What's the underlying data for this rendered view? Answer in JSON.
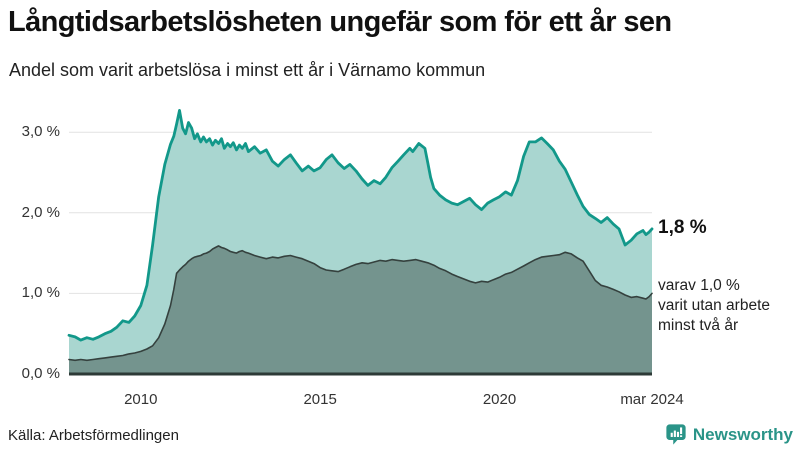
{
  "header": {
    "title": "Långtidsarbetslösheten ungefär som för ett år sen",
    "subtitle": "Andel som varit arbetslösa i minst ett år i Värnamo kommun"
  },
  "annotations": {
    "latest_total": "1,8 %",
    "latest_secondary": "varav 1,0 %\nvarit utan arbete\nminst två år"
  },
  "footer": {
    "source": "Källa: Arbetsförmedlingen",
    "brand": "Newsworthy"
  },
  "colors": {
    "accent_teal": "#12988a",
    "area_light": "#a9d6d0",
    "area_dark": "#74948e",
    "line_dark": "#35413e",
    "grid": "#e2e2e2",
    "axis": "#2d3a37",
    "brand_teal": "#2a9488",
    "text": "#222222"
  },
  "chart_data": {
    "type": "area",
    "title": "Långtidsarbetslösheten ungefär som för ett år sen",
    "subtitle": "Andel som varit arbetslösa i minst ett år i Värnamo kommun",
    "unit": "%",
    "grid": "horizontal",
    "legend": "none",
    "x_axis": {
      "range": [
        2008.0,
        2024.25
      ],
      "ticks": [
        {
          "value": 2010,
          "label": "2010"
        },
        {
          "value": 2015,
          "label": "2015"
        },
        {
          "value": 2020,
          "label": "2020"
        },
        {
          "value": 2024.25,
          "label": "mar 2024"
        }
      ]
    },
    "y_axis": {
      "range": [
        0,
        3.35
      ],
      "ticks": [
        {
          "value": 0,
          "label": "0,0 %"
        },
        {
          "value": 1,
          "label": "1,0 %"
        },
        {
          "value": 2,
          "label": "2,0 %"
        },
        {
          "value": 3,
          "label": "3,0 %"
        }
      ]
    },
    "series": [
      {
        "name": "Andel arbetslösa minst ett år",
        "color": "#12988a",
        "fill": "#a9d6d0",
        "line_width": 2.8,
        "latest_value": 1.8,
        "points": [
          [
            2008.0,
            0.48
          ],
          [
            2008.17,
            0.46
          ],
          [
            2008.33,
            0.42
          ],
          [
            2008.5,
            0.45
          ],
          [
            2008.67,
            0.43
          ],
          [
            2008.83,
            0.46
          ],
          [
            2009.0,
            0.5
          ],
          [
            2009.17,
            0.53
          ],
          [
            2009.33,
            0.58
          ],
          [
            2009.5,
            0.66
          ],
          [
            2009.67,
            0.64
          ],
          [
            2009.83,
            0.72
          ],
          [
            2010.0,
            0.85
          ],
          [
            2010.17,
            1.1
          ],
          [
            2010.33,
            1.6
          ],
          [
            2010.5,
            2.2
          ],
          [
            2010.67,
            2.6
          ],
          [
            2010.83,
            2.85
          ],
          [
            2010.92,
            2.95
          ],
          [
            2011.0,
            3.1
          ],
          [
            2011.08,
            3.27
          ],
          [
            2011.17,
            3.05
          ],
          [
            2011.25,
            2.98
          ],
          [
            2011.33,
            3.12
          ],
          [
            2011.42,
            3.05
          ],
          [
            2011.5,
            2.92
          ],
          [
            2011.58,
            2.98
          ],
          [
            2011.67,
            2.88
          ],
          [
            2011.75,
            2.94
          ],
          [
            2011.83,
            2.88
          ],
          [
            2011.92,
            2.92
          ],
          [
            2012.0,
            2.84
          ],
          [
            2012.08,
            2.9
          ],
          [
            2012.17,
            2.86
          ],
          [
            2012.25,
            2.92
          ],
          [
            2012.33,
            2.8
          ],
          [
            2012.42,
            2.86
          ],
          [
            2012.5,
            2.82
          ],
          [
            2012.58,
            2.87
          ],
          [
            2012.67,
            2.78
          ],
          [
            2012.75,
            2.84
          ],
          [
            2012.83,
            2.8
          ],
          [
            2012.92,
            2.86
          ],
          [
            2013.0,
            2.76
          ],
          [
            2013.17,
            2.82
          ],
          [
            2013.33,
            2.74
          ],
          [
            2013.5,
            2.78
          ],
          [
            2013.67,
            2.64
          ],
          [
            2013.83,
            2.58
          ],
          [
            2014.0,
            2.66
          ],
          [
            2014.17,
            2.72
          ],
          [
            2014.33,
            2.62
          ],
          [
            2014.5,
            2.52
          ],
          [
            2014.67,
            2.58
          ],
          [
            2014.83,
            2.52
          ],
          [
            2015.0,
            2.56
          ],
          [
            2015.17,
            2.66
          ],
          [
            2015.33,
            2.72
          ],
          [
            2015.5,
            2.62
          ],
          [
            2015.67,
            2.55
          ],
          [
            2015.83,
            2.6
          ],
          [
            2016.0,
            2.52
          ],
          [
            2016.17,
            2.42
          ],
          [
            2016.33,
            2.34
          ],
          [
            2016.5,
            2.4
          ],
          [
            2016.67,
            2.36
          ],
          [
            2016.83,
            2.44
          ],
          [
            2017.0,
            2.56
          ],
          [
            2017.17,
            2.64
          ],
          [
            2017.33,
            2.72
          ],
          [
            2017.5,
            2.8
          ],
          [
            2017.58,
            2.76
          ],
          [
            2017.75,
            2.86
          ],
          [
            2017.92,
            2.8
          ],
          [
            2018.0,
            2.62
          ],
          [
            2018.08,
            2.44
          ],
          [
            2018.17,
            2.3
          ],
          [
            2018.33,
            2.22
          ],
          [
            2018.5,
            2.16
          ],
          [
            2018.67,
            2.12
          ],
          [
            2018.83,
            2.1
          ],
          [
            2019.0,
            2.14
          ],
          [
            2019.17,
            2.18
          ],
          [
            2019.33,
            2.1
          ],
          [
            2019.5,
            2.04
          ],
          [
            2019.67,
            2.12
          ],
          [
            2019.83,
            2.16
          ],
          [
            2020.0,
            2.2
          ],
          [
            2020.17,
            2.26
          ],
          [
            2020.33,
            2.22
          ],
          [
            2020.5,
            2.4
          ],
          [
            2020.67,
            2.7
          ],
          [
            2020.83,
            2.88
          ],
          [
            2021.0,
            2.88
          ],
          [
            2021.17,
            2.93
          ],
          [
            2021.33,
            2.86
          ],
          [
            2021.5,
            2.78
          ],
          [
            2021.67,
            2.64
          ],
          [
            2021.83,
            2.54
          ],
          [
            2022.0,
            2.38
          ],
          [
            2022.17,
            2.22
          ],
          [
            2022.33,
            2.08
          ],
          [
            2022.5,
            1.98
          ],
          [
            2022.67,
            1.93
          ],
          [
            2022.83,
            1.88
          ],
          [
            2023.0,
            1.94
          ],
          [
            2023.17,
            1.86
          ],
          [
            2023.33,
            1.8
          ],
          [
            2023.5,
            1.6
          ],
          [
            2023.67,
            1.66
          ],
          [
            2023.83,
            1.74
          ],
          [
            2024.0,
            1.78
          ],
          [
            2024.08,
            1.73
          ],
          [
            2024.17,
            1.76
          ],
          [
            2024.25,
            1.8
          ]
        ]
      },
      {
        "name": "varav utan arbete minst två år",
        "color": "#35413e",
        "fill": "#74948e",
        "line_width": 1.6,
        "latest_value": 1.0,
        "points": [
          [
            2008.0,
            0.18
          ],
          [
            2008.17,
            0.17
          ],
          [
            2008.33,
            0.18
          ],
          [
            2008.5,
            0.17
          ],
          [
            2008.67,
            0.18
          ],
          [
            2008.83,
            0.19
          ],
          [
            2009.0,
            0.2
          ],
          [
            2009.17,
            0.21
          ],
          [
            2009.33,
            0.22
          ],
          [
            2009.5,
            0.23
          ],
          [
            2009.67,
            0.25
          ],
          [
            2009.83,
            0.26
          ],
          [
            2010.0,
            0.28
          ],
          [
            2010.17,
            0.31
          ],
          [
            2010.33,
            0.35
          ],
          [
            2010.5,
            0.45
          ],
          [
            2010.67,
            0.62
          ],
          [
            2010.83,
            0.85
          ],
          [
            2010.92,
            1.05
          ],
          [
            2011.0,
            1.25
          ],
          [
            2011.08,
            1.29
          ],
          [
            2011.17,
            1.33
          ],
          [
            2011.25,
            1.36
          ],
          [
            2011.33,
            1.4
          ],
          [
            2011.42,
            1.43
          ],
          [
            2011.5,
            1.45
          ],
          [
            2011.58,
            1.46
          ],
          [
            2011.67,
            1.47
          ],
          [
            2011.75,
            1.49
          ],
          [
            2011.83,
            1.5
          ],
          [
            2011.92,
            1.52
          ],
          [
            2012.0,
            1.55
          ],
          [
            2012.08,
            1.57
          ],
          [
            2012.17,
            1.59
          ],
          [
            2012.25,
            1.57
          ],
          [
            2012.33,
            1.56
          ],
          [
            2012.42,
            1.54
          ],
          [
            2012.5,
            1.52
          ],
          [
            2012.58,
            1.51
          ],
          [
            2012.67,
            1.5
          ],
          [
            2012.75,
            1.52
          ],
          [
            2012.83,
            1.53
          ],
          [
            2012.92,
            1.51
          ],
          [
            2013.0,
            1.5
          ],
          [
            2013.17,
            1.47
          ],
          [
            2013.33,
            1.45
          ],
          [
            2013.5,
            1.43
          ],
          [
            2013.67,
            1.45
          ],
          [
            2013.83,
            1.44
          ],
          [
            2014.0,
            1.46
          ],
          [
            2014.17,
            1.47
          ],
          [
            2014.33,
            1.45
          ],
          [
            2014.5,
            1.43
          ],
          [
            2014.67,
            1.4
          ],
          [
            2014.83,
            1.37
          ],
          [
            2015.0,
            1.32
          ],
          [
            2015.17,
            1.29
          ],
          [
            2015.33,
            1.28
          ],
          [
            2015.5,
            1.27
          ],
          [
            2015.67,
            1.3
          ],
          [
            2015.83,
            1.33
          ],
          [
            2016.0,
            1.36
          ],
          [
            2016.17,
            1.38
          ],
          [
            2016.33,
            1.37
          ],
          [
            2016.5,
            1.39
          ],
          [
            2016.67,
            1.41
          ],
          [
            2016.83,
            1.4
          ],
          [
            2017.0,
            1.42
          ],
          [
            2017.17,
            1.41
          ],
          [
            2017.33,
            1.4
          ],
          [
            2017.5,
            1.41
          ],
          [
            2017.67,
            1.42
          ],
          [
            2017.83,
            1.4
          ],
          [
            2018.0,
            1.38
          ],
          [
            2018.17,
            1.35
          ],
          [
            2018.33,
            1.31
          ],
          [
            2018.5,
            1.28
          ],
          [
            2018.67,
            1.24
          ],
          [
            2018.83,
            1.21
          ],
          [
            2019.0,
            1.18
          ],
          [
            2019.17,
            1.15
          ],
          [
            2019.33,
            1.13
          ],
          [
            2019.5,
            1.15
          ],
          [
            2019.67,
            1.14
          ],
          [
            2019.83,
            1.17
          ],
          [
            2020.0,
            1.2
          ],
          [
            2020.17,
            1.24
          ],
          [
            2020.33,
            1.26
          ],
          [
            2020.5,
            1.3
          ],
          [
            2020.67,
            1.34
          ],
          [
            2020.83,
            1.38
          ],
          [
            2021.0,
            1.42
          ],
          [
            2021.17,
            1.45
          ],
          [
            2021.33,
            1.46
          ],
          [
            2021.5,
            1.47
          ],
          [
            2021.67,
            1.48
          ],
          [
            2021.83,
            1.51
          ],
          [
            2022.0,
            1.49
          ],
          [
            2022.17,
            1.44
          ],
          [
            2022.33,
            1.4
          ],
          [
            2022.5,
            1.28
          ],
          [
            2022.67,
            1.16
          ],
          [
            2022.83,
            1.1
          ],
          [
            2023.0,
            1.08
          ],
          [
            2023.17,
            1.05
          ],
          [
            2023.33,
            1.02
          ],
          [
            2023.5,
            0.98
          ],
          [
            2023.67,
            0.95
          ],
          [
            2023.83,
            0.96
          ],
          [
            2024.0,
            0.94
          ],
          [
            2024.08,
            0.93
          ],
          [
            2024.17,
            0.96
          ],
          [
            2024.25,
            1.0
          ]
        ]
      }
    ]
  }
}
